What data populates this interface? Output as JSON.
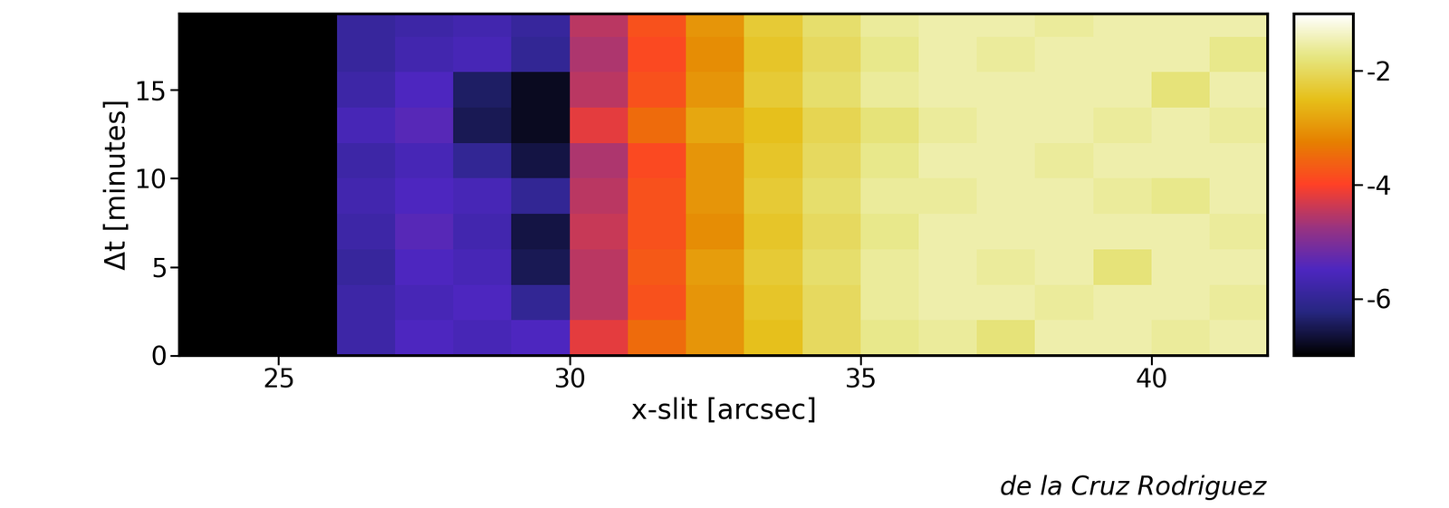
{
  "chart_data": {
    "type": "heatmap",
    "xlabel": "x-slit [arcsec]",
    "ylabel": "Δt [minutes]",
    "annotation": "de la Cruz Rodriguez",
    "color": "CMRmap",
    "xlim": [
      23.3,
      42
    ],
    "ylim": [
      0,
      19.3
    ],
    "xticks": [
      25,
      30,
      35,
      40
    ],
    "yticks": [
      0,
      5,
      10,
      15
    ],
    "x_edges": [
      23.3,
      24,
      25,
      26,
      27,
      28,
      29,
      30,
      31,
      32,
      33,
      34,
      35,
      36,
      37,
      38,
      39,
      40,
      41,
      42
    ],
    "y_edges": [
      0,
      2,
      4,
      6,
      8,
      10,
      12,
      14,
      16,
      18,
      19.3
    ],
    "cells": [
      [
        -7,
        -7,
        -7,
        -5.8,
        -5.5,
        -5.6,
        -5.5,
        -4.2,
        -3.5,
        -3.0,
        -2.5,
        -2.0,
        -1.7,
        -1.6,
        -1.8,
        -1.5,
        -1.5,
        -1.6,
        -1.5
      ],
      [
        -7,
        -7,
        -7,
        -5.8,
        -5.6,
        -5.5,
        -6.0,
        -4.5,
        -3.8,
        -3.0,
        -2.4,
        -2.0,
        -1.6,
        -1.5,
        -1.5,
        -1.6,
        -1.5,
        -1.5,
        -1.6
      ],
      [
        -7,
        -7,
        -7,
        -5.9,
        -5.5,
        -5.6,
        -6.5,
        -4.5,
        -3.7,
        -2.9,
        -2.3,
        -1.9,
        -1.6,
        -1.5,
        -1.6,
        -1.5,
        -1.8,
        -1.5,
        -1.5
      ],
      [
        -7,
        -7,
        -7,
        -5.8,
        -5.4,
        -5.7,
        -6.6,
        -4.4,
        -3.8,
        -3.1,
        -2.4,
        -2.0,
        -1.7,
        -1.5,
        -1.5,
        -1.5,
        -1.5,
        -1.5,
        -1.6
      ],
      [
        -7,
        -7,
        -7,
        -5.7,
        -5.5,
        -5.6,
        -6.0,
        -4.5,
        -3.8,
        -3.0,
        -2.3,
        -1.9,
        -1.6,
        -1.6,
        -1.5,
        -1.5,
        -1.6,
        -1.7,
        -1.5
      ],
      [
        -7,
        -7,
        -7,
        -5.8,
        -5.6,
        -6.0,
        -6.6,
        -4.6,
        -3.9,
        -3.0,
        -2.4,
        -2.0,
        -1.7,
        -1.5,
        -1.5,
        -1.6,
        -1.5,
        -1.5,
        -1.5
      ],
      [
        -7,
        -7,
        -7,
        -5.6,
        -5.4,
        -6.5,
        -6.8,
        -4.2,
        -3.5,
        -2.8,
        -2.5,
        -2.1,
        -1.8,
        -1.6,
        -1.5,
        -1.5,
        -1.6,
        -1.5,
        -1.6
      ],
      [
        -7,
        -7,
        -7,
        -5.8,
        -5.5,
        -6.4,
        -6.8,
        -4.5,
        -3.8,
        -3.0,
        -2.3,
        -1.9,
        -1.6,
        -1.5,
        -1.5,
        -1.5,
        -1.5,
        -1.8,
        -1.5
      ],
      [
        -7,
        -7,
        -7,
        -5.9,
        -5.7,
        -5.6,
        -6.0,
        -4.6,
        -3.9,
        -3.1,
        -2.4,
        -2.0,
        -1.7,
        -1.5,
        -1.6,
        -1.5,
        -1.5,
        -1.5,
        -1.7
      ],
      [
        -7,
        -7,
        -7,
        -5.9,
        -5.8,
        -5.7,
        -5.9,
        -4.5,
        -3.8,
        -3.0,
        -2.3,
        -1.9,
        -1.6,
        -1.5,
        -1.5,
        -1.6,
        -1.5,
        -1.5,
        -1.5
      ]
    ],
    "colorbar_range": [
      -7,
      -1
    ],
    "colorbar_ticks": [
      -2,
      -4,
      -6
    ]
  }
}
